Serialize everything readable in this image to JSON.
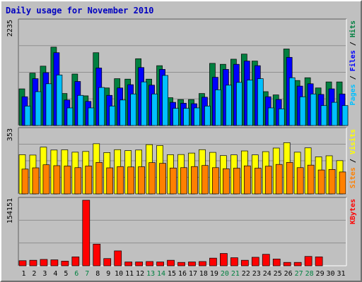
{
  "title": "Daily usage for November 2010",
  "colors": {
    "background": "#c0c0c0",
    "title": "#0000c0",
    "pages": "#00c0ff",
    "files": "#0000ff",
    "hits": "#008040",
    "visits": "#ffff00",
    "sites": "#ff8000",
    "kbytes": "#ff0000",
    "weekend_label": "#008040",
    "weekday_label": "#000000"
  },
  "chart_data": {
    "type": "bar",
    "categories": [
      "1",
      "2",
      "3",
      "4",
      "5",
      "6",
      "7",
      "8",
      "9",
      "10",
      "11",
      "12",
      "13",
      "14",
      "15",
      "16",
      "17",
      "18",
      "19",
      "20",
      "21",
      "22",
      "23",
      "24",
      "25",
      "26",
      "27",
      "28",
      "29",
      "30",
      "31"
    ],
    "weekend_days": [
      "6",
      "7",
      "13",
      "14",
      "20",
      "21",
      "27",
      "28"
    ],
    "panels": [
      {
        "name": "hits-files-pages",
        "ymax_label": "2235",
        "ymax": 2235,
        "legend": [
          "Pages",
          "Files",
          "Hits"
        ],
        "series": [
          {
            "name": "Hits",
            "values": [
              790,
              1130,
              1280,
              1690,
              690,
              1110,
              640,
              1570,
              810,
              1010,
              1000,
              1440,
              1000,
              1290,
              600,
              560,
              560,
              690,
              1340,
              1320,
              1430,
              1540,
              1390,
              730,
              660,
              1650,
              970,
              1030,
              810,
              940,
              940
            ]
          },
          {
            "name": "Files",
            "values": [
              620,
              1010,
              1140,
              1570,
              550,
              950,
              520,
              1240,
              650,
              810,
              880,
              1250,
              870,
              1210,
              500,
              480,
              470,
              610,
              1040,
              1210,
              1320,
              1390,
              1290,
              620,
              560,
              1470,
              850,
              900,
              670,
              790,
              680
            ]
          },
          {
            "name": "Pages",
            "values": [
              420,
              730,
              900,
              1090,
              380,
              650,
              380,
              820,
              420,
              550,
              680,
              940,
              680,
              1080,
              370,
              370,
              380,
              420,
              770,
              870,
              930,
              980,
              1010,
              380,
              360,
              1030,
              620,
              680,
              430,
              500,
              430
            ]
          }
        ]
      },
      {
        "name": "visits-sites",
        "ymax_label": "353",
        "ymax": 353,
        "legend": [
          "Sites",
          "Visits"
        ],
        "series": [
          {
            "name": "Visits",
            "values": [
              218,
              216,
              260,
              244,
              245,
              232,
              236,
              279,
              230,
              246,
              241,
              244,
              274,
              269,
              218,
              219,
              227,
              246,
              231,
              213,
              217,
              239,
              217,
              235,
              255,
              285,
              232,
              256,
              206,
              212,
              185
            ]
          },
          {
            "name": "Sites",
            "values": [
              138,
              145,
              162,
              157,
              155,
              146,
              155,
              175,
              145,
              152,
              150,
              151,
              174,
              170,
              144,
              146,
              152,
              158,
              146,
              140,
              143,
              156,
              143,
              154,
              164,
              175,
              146,
              160,
              133,
              136,
              122
            ]
          }
        ]
      },
      {
        "name": "kbytes",
        "ymax_label": "154151",
        "ymax": 154151,
        "legend": [
          "KBytes"
        ],
        "series": [
          {
            "name": "KBytes",
            "values": [
              12000,
              13000,
              15000,
              14000,
              11000,
              21000,
              154151,
              51000,
              17000,
              35000,
              9000,
              9000,
              10000,
              9000,
              13000,
              8000,
              9000,
              10000,
              18000,
              29000,
              19000,
              13000,
              20000,
              27000,
              16000,
              8000,
              8000,
              22000,
              21000,
              0,
              0
            ]
          }
        ]
      }
    ]
  }
}
